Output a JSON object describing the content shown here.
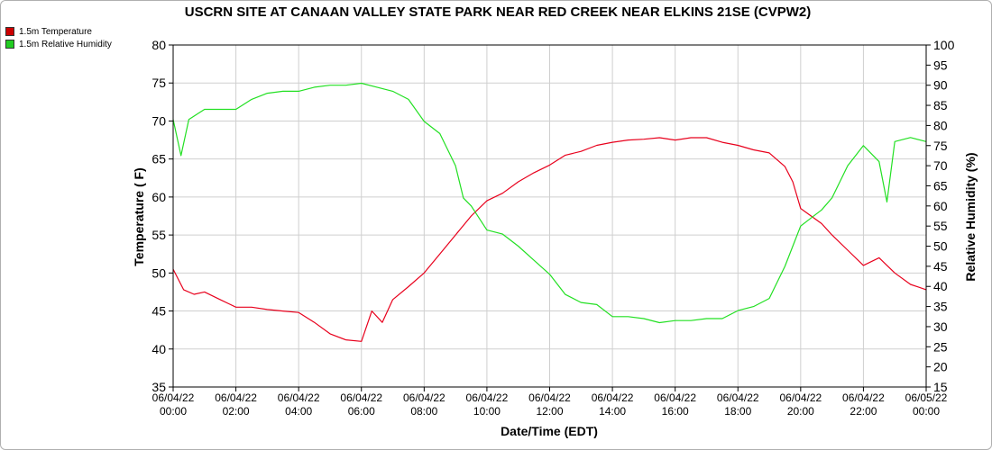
{
  "colors": {
    "temperature": "#e8001c",
    "humidity": "#22e022",
    "grid": "#cfcfcf"
  },
  "legend": [
    {
      "label": "1.5m Temperature",
      "color": "#cc0000"
    },
    {
      "label": "1.5m Relative Humidity",
      "color": "#22cc22"
    }
  ],
  "chart_data": {
    "type": "line",
    "title": "USCRN SITE AT CANAAN VALLEY STATE PARK NEAR RED CREEK NEAR ELKINS 21SE (CVPW2)",
    "xlabel": "Date/Time (EDT)",
    "ylabel": "Temperature ( F)",
    "y2label": "Relative Humidity (%)",
    "xlim": [
      "06/04/22 00:00",
      "06/05/22 00:00"
    ],
    "ylim": [
      35,
      80
    ],
    "y2lim": [
      15,
      100
    ],
    "grid": true,
    "legend_position": "top-left",
    "x_ticks": [
      {
        "date": "06/04/22",
        "time": "00:00"
      },
      {
        "date": "06/04/22",
        "time": "02:00"
      },
      {
        "date": "06/04/22",
        "time": "04:00"
      },
      {
        "date": "06/04/22",
        "time": "06:00"
      },
      {
        "date": "06/04/22",
        "time": "08:00"
      },
      {
        "date": "06/04/22",
        "time": "10:00"
      },
      {
        "date": "06/04/22",
        "time": "12:00"
      },
      {
        "date": "06/04/22",
        "time": "14:00"
      },
      {
        "date": "06/04/22",
        "time": "16:00"
      },
      {
        "date": "06/04/22",
        "time": "18:00"
      },
      {
        "date": "06/04/22",
        "time": "20:00"
      },
      {
        "date": "06/04/22",
        "time": "22:00"
      },
      {
        "date": "06/05/22",
        "time": "00:00"
      }
    ],
    "y_ticks": [
      35,
      40,
      45,
      50,
      55,
      60,
      65,
      70,
      75,
      80
    ],
    "y2_ticks": [
      15,
      20,
      25,
      30,
      35,
      40,
      45,
      50,
      55,
      60,
      65,
      70,
      75,
      80,
      85,
      90,
      95,
      100
    ],
    "series": [
      {
        "name": "1.5m Temperature",
        "axis": "left",
        "x": [
          "06/04/22 00:00",
          "06/04/22 00:20",
          "06/04/22 00:40",
          "06/04/22 01:00",
          "06/04/22 01:30",
          "06/04/22 02:00",
          "06/04/22 02:30",
          "06/04/22 03:00",
          "06/04/22 03:30",
          "06/04/22 04:00",
          "06/04/22 04:30",
          "06/04/22 05:00",
          "06/04/22 05:30",
          "06/04/22 06:00",
          "06/04/22 06:20",
          "06/04/22 06:40",
          "06/04/22 07:00",
          "06/04/22 07:30",
          "06/04/22 08:00",
          "06/04/22 08:30",
          "06/04/22 09:00",
          "06/04/22 09:30",
          "06/04/22 10:00",
          "06/04/22 10:30",
          "06/04/22 11:00",
          "06/04/22 11:30",
          "06/04/22 12:00",
          "06/04/22 12:30",
          "06/04/22 13:00",
          "06/04/22 13:30",
          "06/04/22 14:00",
          "06/04/22 14:30",
          "06/04/22 15:00",
          "06/04/22 15:30",
          "06/04/22 16:00",
          "06/04/22 16:30",
          "06/04/22 17:00",
          "06/04/22 17:30",
          "06/04/22 18:00",
          "06/04/22 18:30",
          "06/04/22 19:00",
          "06/04/22 19:30",
          "06/04/22 19:45",
          "06/04/22 20:00",
          "06/04/22 20:20",
          "06/04/22 20:40",
          "06/04/22 21:00",
          "06/04/22 21:30",
          "06/04/22 22:00",
          "06/04/22 22:30",
          "06/04/22 23:00",
          "06/04/22 23:30",
          "06/05/22 00:00"
        ],
        "values": [
          50.5,
          47.8,
          47.2,
          47.5,
          46.5,
          45.5,
          45.5,
          45.2,
          45.0,
          44.8,
          43.5,
          42.0,
          41.2,
          41.0,
          45.0,
          43.5,
          46.5,
          48.2,
          50.0,
          52.5,
          55.0,
          57.5,
          59.5,
          60.5,
          62.0,
          63.2,
          64.2,
          65.5,
          66.0,
          66.8,
          67.2,
          67.5,
          67.6,
          67.8,
          67.5,
          67.8,
          67.8,
          67.2,
          66.8,
          66.2,
          65.8,
          64.0,
          62.0,
          58.5,
          57.5,
          56.5,
          55.0,
          53.0,
          51.0,
          52.0,
          50.0,
          48.5,
          47.8
        ]
      },
      {
        "name": "1.5m Relative Humidity",
        "axis": "right",
        "x": [
          "06/04/22 00:00",
          "06/04/22 00:15",
          "06/04/22 00:30",
          "06/04/22 01:00",
          "06/04/22 01:30",
          "06/04/22 02:00",
          "06/04/22 02:30",
          "06/04/22 03:00",
          "06/04/22 03:30",
          "06/04/22 04:00",
          "06/04/22 04:30",
          "06/04/22 05:00",
          "06/04/22 05:30",
          "06/04/22 06:00",
          "06/04/22 06:30",
          "06/04/22 07:00",
          "06/04/22 07:30",
          "06/04/22 08:00",
          "06/04/22 08:30",
          "06/04/22 09:00",
          "06/04/22 09:15",
          "06/04/22 09:30",
          "06/04/22 10:00",
          "06/04/22 10:30",
          "06/04/22 11:00",
          "06/04/22 11:30",
          "06/04/22 12:00",
          "06/04/22 12:30",
          "06/04/22 13:00",
          "06/04/22 13:30",
          "06/04/22 14:00",
          "06/04/22 14:30",
          "06/04/22 15:00",
          "06/04/22 15:30",
          "06/04/22 16:00",
          "06/04/22 16:30",
          "06/04/22 17:00",
          "06/04/22 17:30",
          "06/04/22 18:00",
          "06/04/22 18:30",
          "06/04/22 19:00",
          "06/04/22 19:30",
          "06/04/22 20:00",
          "06/04/22 20:20",
          "06/04/22 20:40",
          "06/04/22 21:00",
          "06/04/22 21:30",
          "06/04/22 22:00",
          "06/04/22 22:30",
          "06/04/22 22:45",
          "06/04/22 23:00",
          "06/04/22 23:30",
          "06/05/22 00:00"
        ],
        "values": [
          81.5,
          72.5,
          81.5,
          84.0,
          84.0,
          84.0,
          86.5,
          88.0,
          88.5,
          88.5,
          89.5,
          90.0,
          90.0,
          90.5,
          89.5,
          88.5,
          86.5,
          81.0,
          78.0,
          70.0,
          62.0,
          60.0,
          54.0,
          53.0,
          50.0,
          46.5,
          43.0,
          38.0,
          36.0,
          35.5,
          32.5,
          32.5,
          32.0,
          31.0,
          31.5,
          31.5,
          32.0,
          32.0,
          34.0,
          35.0,
          37.0,
          45.0,
          55.0,
          57.0,
          59.0,
          62.0,
          70.0,
          75.0,
          71.0,
          61.0,
          76.0,
          77.0,
          76.0
        ]
      }
    ]
  }
}
